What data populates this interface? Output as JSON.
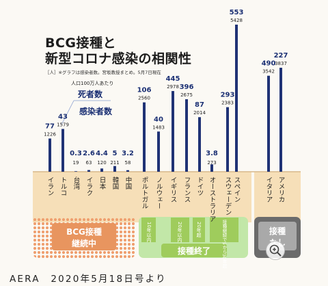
{
  "title_line1": "BCG接種と",
  "title_line2": "新型コロナ感染の相関性",
  "note": "［人］※グラフは感染者数。宮坂教授まとめ。5月7日現在",
  "legend": {
    "per_population": "人口100万人あたり",
    "deaths": "死者数",
    "infections": "感染者数"
  },
  "groups": {
    "continuing": {
      "label_line1": "BCG接種",
      "label_line2": "継続中"
    },
    "ended": {
      "label": "接種終了",
      "sub_norway": "10年以内",
      "sub_italy_france": "20年以内",
      "sub_germany": "20年超",
      "sub_sweden": "接種継続で5から30年超"
    },
    "none": {
      "label_line1": "接種",
      "label_line2": "なし"
    }
  },
  "caption": "AERA　2020年5月18日号より",
  "colors": {
    "bar": "#1f3275",
    "continuing_label_bg": "#e8955f",
    "continuing_dots": "#ef9f6f",
    "ended_label_bg": "#9fcc5c",
    "ended_panel": "#c2e7a8",
    "none_label_bg": "#a9a9a9",
    "none_panel": "#6b6b6b",
    "band": "#f6dfb8",
    "band_line": "#d7b889"
  },
  "chart_data": {
    "type": "bar",
    "title": "BCG接種と新型コロナ感染の相関性",
    "unit": "人",
    "categories": [
      "イラン",
      "トルコ",
      "台湾",
      "イラク",
      "日本",
      "韓国",
      "中国",
      "ポルトガル",
      "ノルウェー",
      "イギリス",
      "フランス",
      "ドイツ",
      "オーストラリア",
      "スウェーデン",
      "スペイン",
      "イタリア",
      "アメリカ"
    ],
    "series": [
      {
        "name": "感染者数",
        "values": [
          1226,
          1579,
          19,
          63,
          120,
          211,
          58,
          2560,
          1483,
          2978,
          2675,
          2014,
          273,
          2383,
          5428,
          3542,
          3837
        ]
      },
      {
        "name": "死者数",
        "values": [
          77,
          43,
          0.3,
          2.6,
          4.4,
          5,
          3.2,
          106,
          40,
          445,
          396,
          87,
          3.8,
          293,
          553,
          490,
          227
        ]
      }
    ],
    "death_labels": [
      "77",
      "43",
      "0.3",
      "2.6",
      "4.4",
      "5",
      "3.2",
      "106",
      "40",
      "445",
      "396",
      "87",
      "3.8",
      "293",
      "553",
      "490",
      "227"
    ],
    "infection_labels": [
      "1226",
      "1579",
      "19",
      "63",
      "120",
      "211",
      "58",
      "2560",
      "1483",
      "2978",
      "2675",
      "2014",
      "273",
      "2383",
      "5428",
      "3542",
      "3837"
    ],
    "ylim": [
      0,
      5428
    ]
  }
}
